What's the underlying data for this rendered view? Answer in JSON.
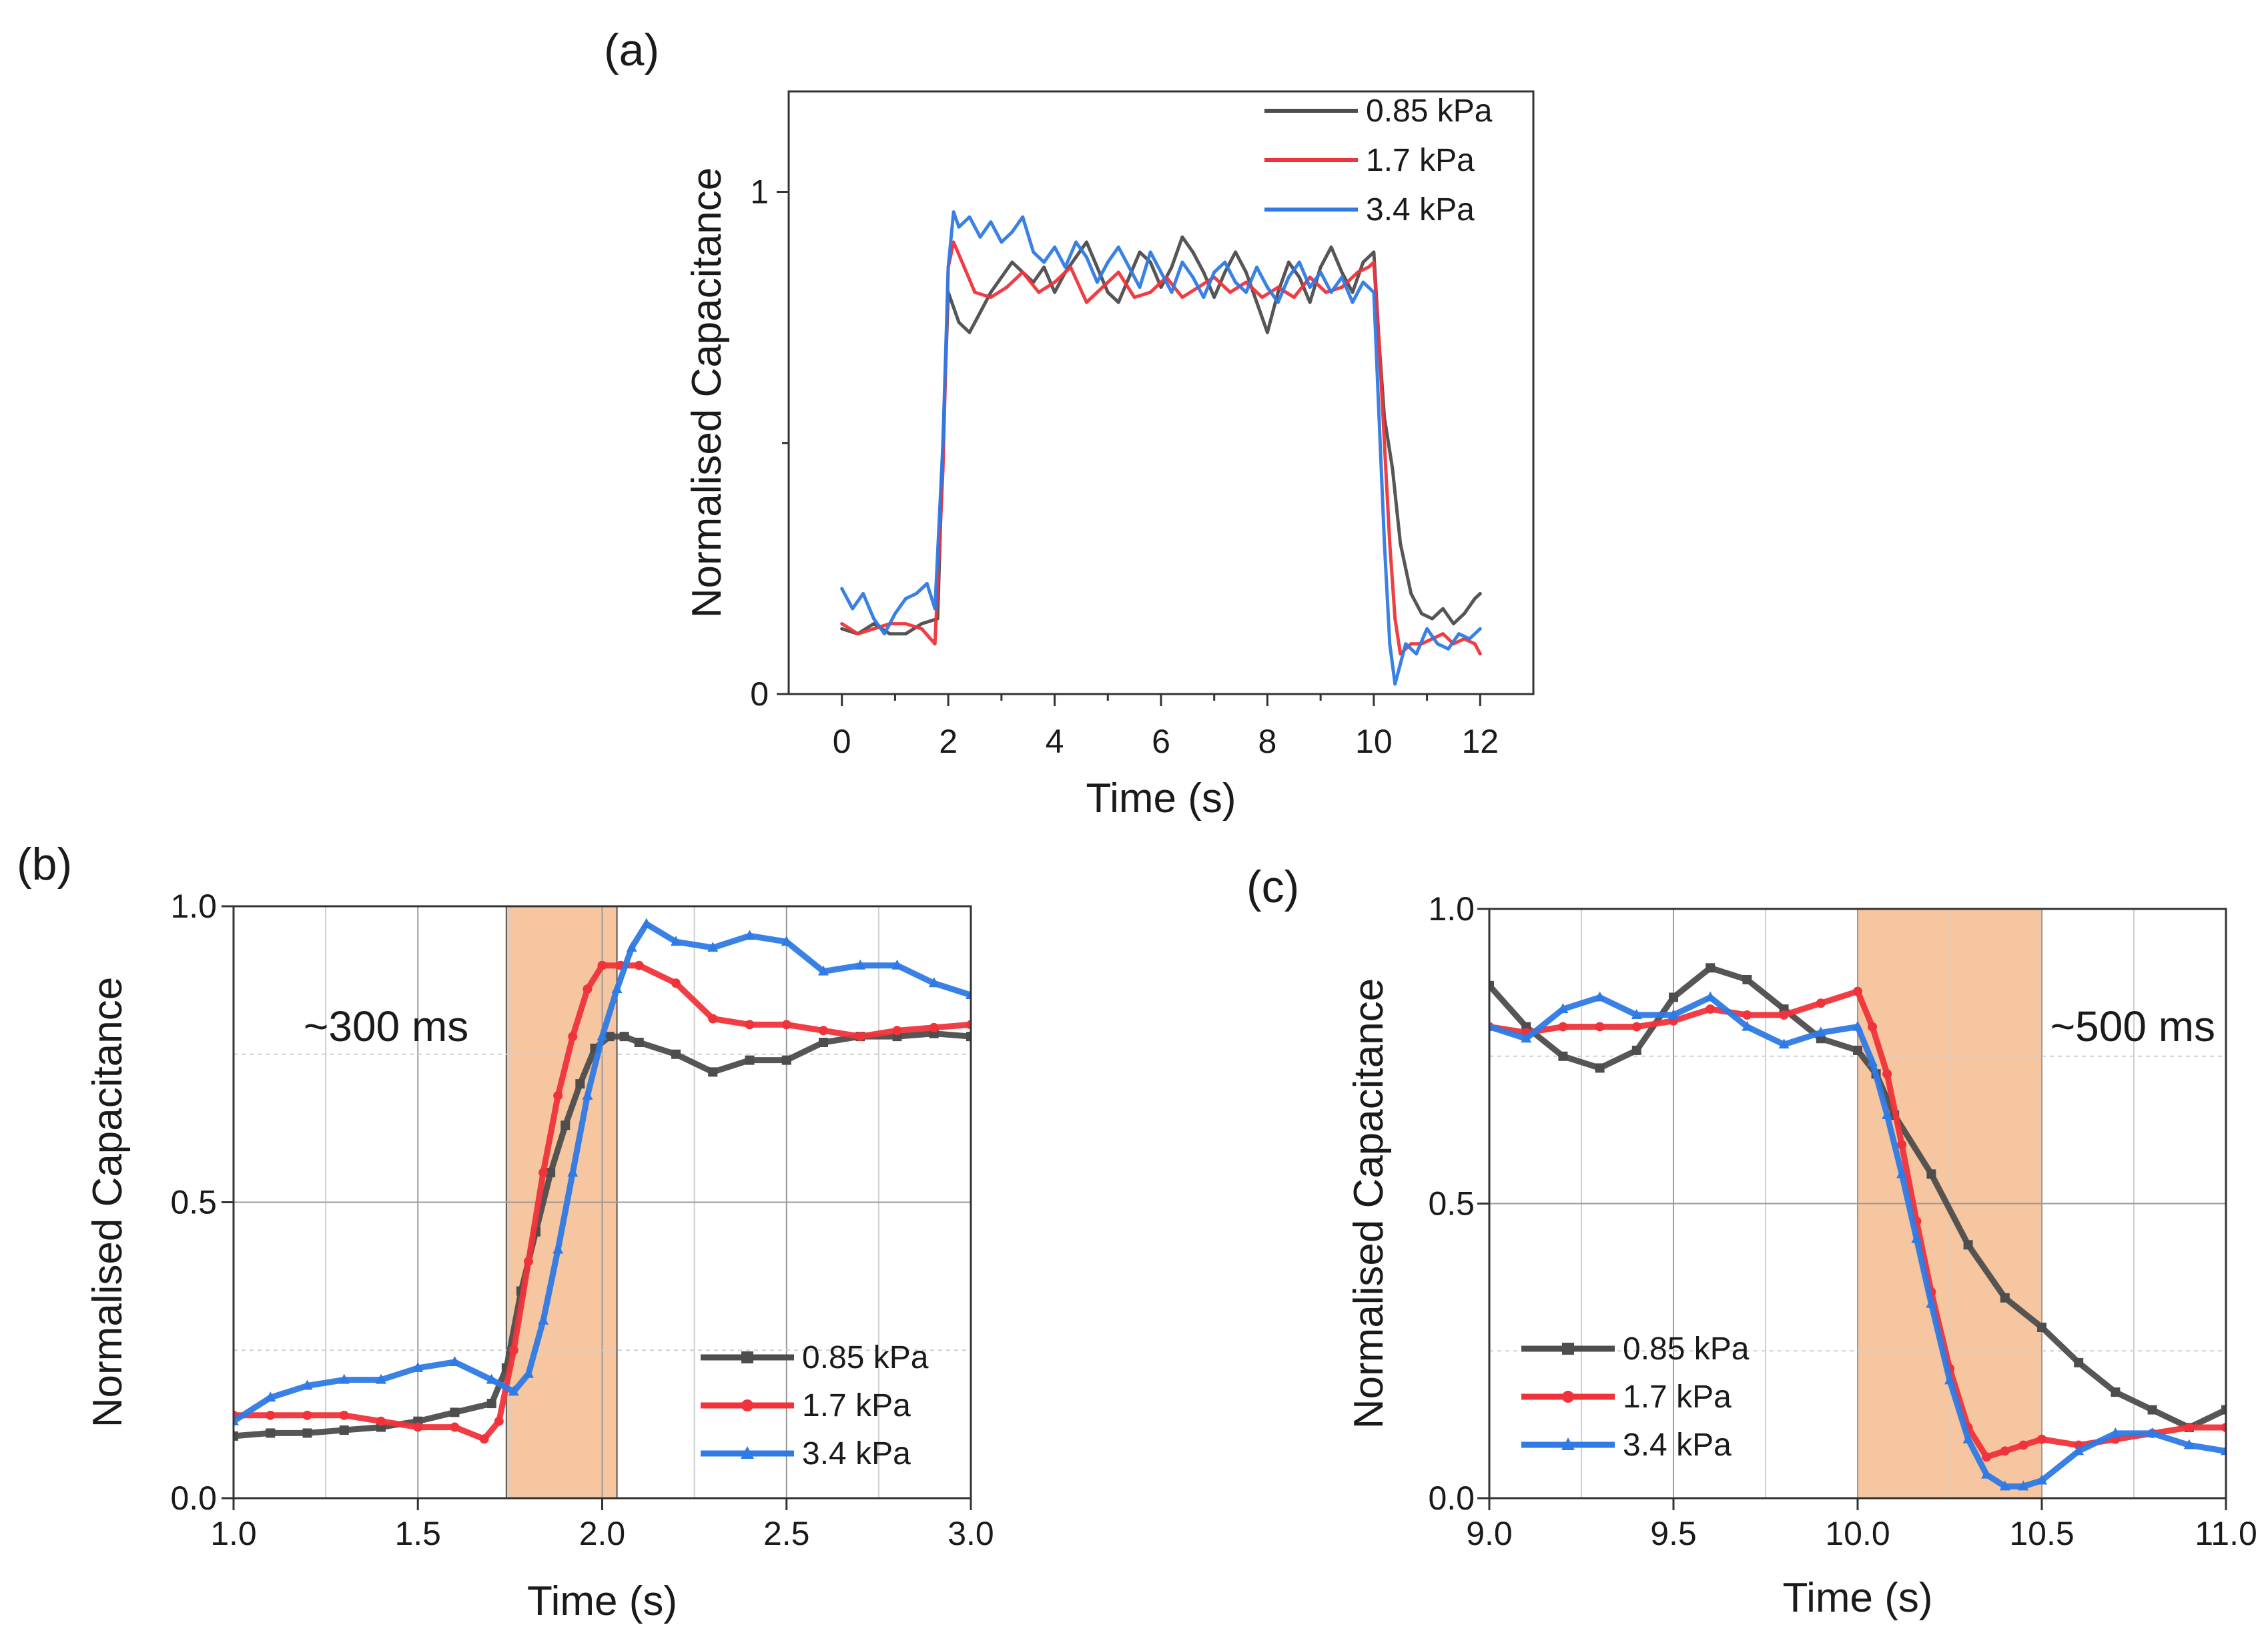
{
  "figure": {
    "panels": [
      "(a)",
      "(b)",
      "(c)"
    ]
  },
  "colors": {
    "s085": "#4d4d4d",
    "s17": "#f0333a",
    "s34": "#2f7ae5",
    "highlight": "#f5c6a0"
  },
  "chart_data": [
    {
      "type": "line",
      "panel": "(a)",
      "title": "",
      "xlabel": "Time (s)",
      "ylabel": "Normalised Capacitance",
      "xlim": [
        -1,
        13
      ],
      "ylim": [
        0,
        1.2
      ],
      "xticks": [
        "0",
        "2",
        "4",
        "6",
        "8",
        "10",
        "12"
      ],
      "xtick_values": [
        0,
        2,
        4,
        6,
        8,
        10,
        12
      ],
      "yticks": [
        "0",
        "1"
      ],
      "ytick_values": [
        0,
        1
      ],
      "grid": false,
      "legend_position": "top-right",
      "series": [
        {
          "name": "0.85 kPa",
          "color_key": "s085",
          "x": [
            0,
            0.3,
            0.6,
            0.9,
            1.2,
            1.5,
            1.8,
            1.9,
            2.0,
            2.2,
            2.4,
            2.6,
            2.8,
            3.0,
            3.2,
            3.4,
            3.6,
            3.8,
            4.0,
            4.2,
            4.4,
            4.6,
            4.8,
            5.0,
            5.2,
            5.4,
            5.6,
            5.8,
            6.0,
            6.2,
            6.4,
            6.6,
            6.8,
            7.0,
            7.2,
            7.4,
            7.6,
            7.8,
            8.0,
            8.2,
            8.4,
            8.6,
            8.8,
            9.0,
            9.2,
            9.4,
            9.6,
            9.8,
            10.0,
            10.1,
            10.2,
            10.35,
            10.5,
            10.7,
            10.9,
            11.1,
            11.3,
            11.5,
            11.7,
            11.9,
            12.0
          ],
          "y": [
            0.13,
            0.12,
            0.14,
            0.12,
            0.12,
            0.14,
            0.15,
            0.5,
            0.8,
            0.74,
            0.72,
            0.76,
            0.8,
            0.83,
            0.86,
            0.84,
            0.82,
            0.85,
            0.8,
            0.84,
            0.87,
            0.9,
            0.85,
            0.8,
            0.78,
            0.83,
            0.88,
            0.86,
            0.81,
            0.85,
            0.91,
            0.88,
            0.84,
            0.79,
            0.84,
            0.88,
            0.84,
            0.78,
            0.72,
            0.8,
            0.86,
            0.83,
            0.78,
            0.85,
            0.89,
            0.84,
            0.8,
            0.86,
            0.88,
            0.7,
            0.55,
            0.45,
            0.3,
            0.2,
            0.16,
            0.15,
            0.17,
            0.14,
            0.16,
            0.19,
            0.2
          ]
        },
        {
          "name": "1.7 kPa",
          "color_key": "s17",
          "x": [
            0,
            0.3,
            0.6,
            0.9,
            1.2,
            1.5,
            1.75,
            1.9,
            2.0,
            2.1,
            2.3,
            2.5,
            2.8,
            3.1,
            3.4,
            3.7,
            4.0,
            4.3,
            4.6,
            4.9,
            5.2,
            5.5,
            5.8,
            6.1,
            6.4,
            6.7,
            7.0,
            7.3,
            7.6,
            7.9,
            8.2,
            8.5,
            8.8,
            9.1,
            9.4,
            9.7,
            9.9,
            10.0,
            10.1,
            10.2,
            10.3,
            10.4,
            10.5,
            10.7,
            10.9,
            11.1,
            11.3,
            11.5,
            11.7,
            11.9,
            12.0
          ],
          "y": [
            0.14,
            0.12,
            0.13,
            0.14,
            0.14,
            0.13,
            0.1,
            0.45,
            0.85,
            0.9,
            0.85,
            0.8,
            0.79,
            0.81,
            0.84,
            0.8,
            0.82,
            0.85,
            0.78,
            0.81,
            0.84,
            0.79,
            0.8,
            0.83,
            0.79,
            0.81,
            0.83,
            0.8,
            0.82,
            0.79,
            0.81,
            0.79,
            0.83,
            0.8,
            0.81,
            0.84,
            0.85,
            0.86,
            0.7,
            0.5,
            0.3,
            0.15,
            0.08,
            0.1,
            0.1,
            0.11,
            0.12,
            0.1,
            0.11,
            0.1,
            0.08
          ]
        },
        {
          "name": "3.4 kPa",
          "color_key": "s34",
          "x": [
            0,
            0.2,
            0.4,
            0.6,
            0.8,
            1.0,
            1.2,
            1.4,
            1.6,
            1.75,
            1.9,
            2.0,
            2.1,
            2.2,
            2.4,
            2.6,
            2.8,
            3.0,
            3.2,
            3.4,
            3.6,
            3.8,
            4.0,
            4.2,
            4.4,
            4.6,
            4.8,
            5.0,
            5.2,
            5.4,
            5.6,
            5.8,
            6.0,
            6.2,
            6.4,
            6.6,
            6.8,
            7.0,
            7.2,
            7.4,
            7.6,
            7.8,
            8.0,
            8.2,
            8.4,
            8.6,
            8.8,
            9.0,
            9.2,
            9.4,
            9.6,
            9.8,
            10.0,
            10.1,
            10.2,
            10.3,
            10.4,
            10.5,
            10.6,
            10.8,
            11.0,
            11.2,
            11.4,
            11.6,
            11.8,
            12.0
          ],
          "y": [
            0.21,
            0.17,
            0.2,
            0.15,
            0.12,
            0.16,
            0.19,
            0.2,
            0.22,
            0.17,
            0.5,
            0.85,
            0.96,
            0.93,
            0.95,
            0.91,
            0.94,
            0.9,
            0.92,
            0.95,
            0.88,
            0.86,
            0.89,
            0.85,
            0.9,
            0.87,
            0.82,
            0.86,
            0.89,
            0.85,
            0.81,
            0.88,
            0.84,
            0.8,
            0.86,
            0.83,
            0.79,
            0.84,
            0.86,
            0.82,
            0.8,
            0.85,
            0.81,
            0.78,
            0.83,
            0.86,
            0.81,
            0.84,
            0.8,
            0.83,
            0.78,
            0.82,
            0.8,
            0.55,
            0.3,
            0.1,
            0.02,
            0.06,
            0.1,
            0.08,
            0.13,
            0.1,
            0.09,
            0.12,
            0.11,
            0.13
          ]
        }
      ]
    },
    {
      "type": "line",
      "panel": "(b)",
      "title": "",
      "xlabel": "Time (s)",
      "ylabel": "Normalised Capacitance",
      "xlim": [
        1.0,
        3.0
      ],
      "ylim": [
        0.0,
        1.0
      ],
      "xticks": [
        "1.0",
        "1.5",
        "2.0",
        "2.5",
        "3.0"
      ],
      "xtick_values": [
        1.0,
        1.5,
        2.0,
        2.5,
        3.0
      ],
      "yticks": [
        "0.0",
        "0.5",
        "1.0"
      ],
      "ytick_values": [
        0.0,
        0.5,
        1.0
      ],
      "grid": true,
      "gridlines_x": [
        1.25,
        1.5,
        1.75,
        2.0,
        2.25,
        2.5,
        2.75
      ],
      "gridlines_y": [
        0.25,
        0.5,
        0.75
      ],
      "highlight_span": [
        1.74,
        2.04
      ],
      "annotation": "~300 ms",
      "legend_position": "bottom-right",
      "series": [
        {
          "name": "0.85 kPa",
          "color_key": "s085",
          "marker": "square",
          "x": [
            1.0,
            1.1,
            1.2,
            1.3,
            1.4,
            1.5,
            1.6,
            1.7,
            1.74,
            1.78,
            1.82,
            1.86,
            1.9,
            1.94,
            1.98,
            2.02,
            2.06,
            2.1,
            2.2,
            2.3,
            2.4,
            2.5,
            2.6,
            2.7,
            2.8,
            2.9,
            3.0
          ],
          "y": [
            0.105,
            0.11,
            0.11,
            0.115,
            0.12,
            0.13,
            0.145,
            0.16,
            0.22,
            0.35,
            0.45,
            0.55,
            0.63,
            0.7,
            0.76,
            0.78,
            0.78,
            0.77,
            0.75,
            0.72,
            0.74,
            0.74,
            0.77,
            0.78,
            0.78,
            0.785,
            0.78
          ]
        },
        {
          "name": "1.7 kPa",
          "color_key": "s17",
          "marker": "circle",
          "x": [
            1.0,
            1.1,
            1.2,
            1.3,
            1.4,
            1.5,
            1.6,
            1.68,
            1.72,
            1.76,
            1.8,
            1.84,
            1.88,
            1.92,
            1.96,
            2.0,
            2.05,
            2.1,
            2.2,
            2.3,
            2.4,
            2.5,
            2.6,
            2.7,
            2.8,
            2.9,
            3.0
          ],
          "y": [
            0.14,
            0.14,
            0.14,
            0.14,
            0.13,
            0.12,
            0.12,
            0.1,
            0.13,
            0.25,
            0.4,
            0.55,
            0.68,
            0.78,
            0.86,
            0.9,
            0.9,
            0.9,
            0.87,
            0.81,
            0.8,
            0.8,
            0.79,
            0.78,
            0.79,
            0.795,
            0.8
          ]
        },
        {
          "name": "3.4 kPa",
          "color_key": "s34",
          "marker": "triangle",
          "x": [
            1.0,
            1.1,
            1.2,
            1.3,
            1.4,
            1.5,
            1.6,
            1.7,
            1.76,
            1.8,
            1.84,
            1.88,
            1.92,
            1.96,
            2.0,
            2.04,
            2.08,
            2.12,
            2.2,
            2.3,
            2.4,
            2.5,
            2.6,
            2.7,
            2.8,
            2.9,
            3.0
          ],
          "y": [
            0.13,
            0.17,
            0.19,
            0.2,
            0.2,
            0.22,
            0.23,
            0.2,
            0.18,
            0.21,
            0.3,
            0.42,
            0.55,
            0.68,
            0.78,
            0.86,
            0.93,
            0.97,
            0.94,
            0.93,
            0.95,
            0.94,
            0.89,
            0.9,
            0.9,
            0.87,
            0.85
          ]
        }
      ]
    },
    {
      "type": "line",
      "panel": "(c)",
      "title": "",
      "xlabel": "Time (s)",
      "ylabel": "Normalised Capacitance",
      "xlim": [
        9.0,
        11.0
      ],
      "ylim": [
        0.0,
        1.0
      ],
      "xticks": [
        "9.0",
        "9.5",
        "10.0",
        "10.5",
        "11.0"
      ],
      "xtick_values": [
        9.0,
        9.5,
        10.0,
        10.5,
        11.0
      ],
      "yticks": [
        "0.0",
        "0.5",
        "1.0"
      ],
      "ytick_values": [
        0.0,
        0.5,
        1.0
      ],
      "grid": true,
      "gridlines_x": [
        9.25,
        9.5,
        9.75,
        10.0,
        10.25,
        10.5,
        10.75
      ],
      "gridlines_y": [
        0.25,
        0.5,
        0.75
      ],
      "highlight_span": [
        10.0,
        10.5
      ],
      "annotation": "~500 ms",
      "legend_position": "bottom-left",
      "series": [
        {
          "name": "0.85 kPa",
          "color_key": "s085",
          "marker": "square",
          "x": [
            9.0,
            9.1,
            9.2,
            9.3,
            9.4,
            9.5,
            9.6,
            9.7,
            9.8,
            9.9,
            10.0,
            10.05,
            10.1,
            10.2,
            10.3,
            10.4,
            10.5,
            10.6,
            10.7,
            10.8,
            10.9,
            11.0
          ],
          "y": [
            0.87,
            0.8,
            0.75,
            0.73,
            0.76,
            0.85,
            0.9,
            0.88,
            0.83,
            0.78,
            0.76,
            0.72,
            0.65,
            0.55,
            0.43,
            0.34,
            0.29,
            0.23,
            0.18,
            0.15,
            0.12,
            0.15
          ]
        },
        {
          "name": "1.7 kPa",
          "color_key": "s17",
          "marker": "circle",
          "x": [
            9.0,
            9.1,
            9.2,
            9.3,
            9.4,
            9.5,
            9.6,
            9.7,
            9.8,
            9.9,
            10.0,
            10.04,
            10.08,
            10.12,
            10.16,
            10.2,
            10.25,
            10.3,
            10.35,
            10.4,
            10.45,
            10.5,
            10.6,
            10.7,
            10.8,
            10.9,
            11.0
          ],
          "y": [
            0.8,
            0.79,
            0.8,
            0.8,
            0.8,
            0.81,
            0.83,
            0.82,
            0.82,
            0.84,
            0.86,
            0.8,
            0.72,
            0.6,
            0.47,
            0.35,
            0.22,
            0.12,
            0.07,
            0.08,
            0.09,
            0.1,
            0.09,
            0.1,
            0.11,
            0.12,
            0.12
          ]
        },
        {
          "name": "3.4 kPa",
          "color_key": "s34",
          "marker": "triangle",
          "x": [
            9.0,
            9.1,
            9.2,
            9.3,
            9.4,
            9.5,
            9.6,
            9.7,
            9.8,
            9.9,
            10.0,
            10.04,
            10.08,
            10.12,
            10.16,
            10.2,
            10.25,
            10.3,
            10.35,
            10.4,
            10.45,
            10.5,
            10.6,
            10.7,
            10.8,
            10.9,
            11.0
          ],
          "y": [
            0.8,
            0.78,
            0.83,
            0.85,
            0.82,
            0.82,
            0.85,
            0.8,
            0.77,
            0.79,
            0.8,
            0.74,
            0.65,
            0.55,
            0.44,
            0.33,
            0.2,
            0.1,
            0.04,
            0.02,
            0.02,
            0.03,
            0.08,
            0.11,
            0.11,
            0.09,
            0.08
          ]
        }
      ]
    }
  ]
}
